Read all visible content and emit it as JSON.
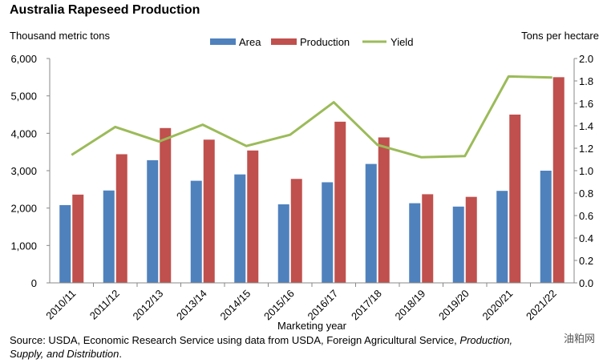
{
  "chart_data": {
    "type": "bar",
    "title": "Australia Rapeseed Production",
    "y_left_label": "Thousand metric tons",
    "y_right_label": "Tons per hectare",
    "xlabel": "Marketing year",
    "categories": [
      "2010/11",
      "2011/12",
      "2012/13",
      "2013/14",
      "2014/15",
      "2015/16",
      "2016/17",
      "2017/18",
      "2018/19",
      "2019/20",
      "2020/21",
      "2021/22"
    ],
    "series": [
      {
        "name": "Area",
        "kind": "bar",
        "axis": "left",
        "color": "#4f81bd",
        "values": [
          2080,
          2470,
          3280,
          2730,
          2900,
          2100,
          2690,
          3180,
          2130,
          2040,
          2460,
          3000
        ]
      },
      {
        "name": "Production",
        "kind": "bar",
        "axis": "left",
        "color": "#c0504d",
        "values": [
          2360,
          3440,
          4140,
          3830,
          3540,
          2780,
          4310,
          3890,
          2370,
          2300,
          4500,
          5500
        ]
      },
      {
        "name": "Yield",
        "kind": "line",
        "axis": "right",
        "color": "#9bbb59",
        "values": [
          1.14,
          1.39,
          1.26,
          1.41,
          1.22,
          1.32,
          1.61,
          1.23,
          1.12,
          1.13,
          1.84,
          1.83
        ]
      }
    ],
    "y_left": {
      "min": 0,
      "max": 6000,
      "ticks": [
        "0",
        "1,000",
        "2,000",
        "3,000",
        "4,000",
        "5,000",
        "6,000"
      ]
    },
    "y_right": {
      "min": 0,
      "max": 2.0,
      "ticks": [
        "0.0",
        "0.2",
        "0.4",
        "0.6",
        "0.8",
        "1.0",
        "1.2",
        "1.4",
        "1.6",
        "1.8",
        "2.0"
      ]
    },
    "grid": false,
    "legend_position": "top-center",
    "source_prefix": "Source: USDA, Economic Research Service using data from USDA, Foreign Agricultural Service, ",
    "source_italic_1": "Production,",
    "source_italic_2": "Supply, and Distribution",
    "source_suffix": ".",
    "watermark": "油粕网"
  }
}
